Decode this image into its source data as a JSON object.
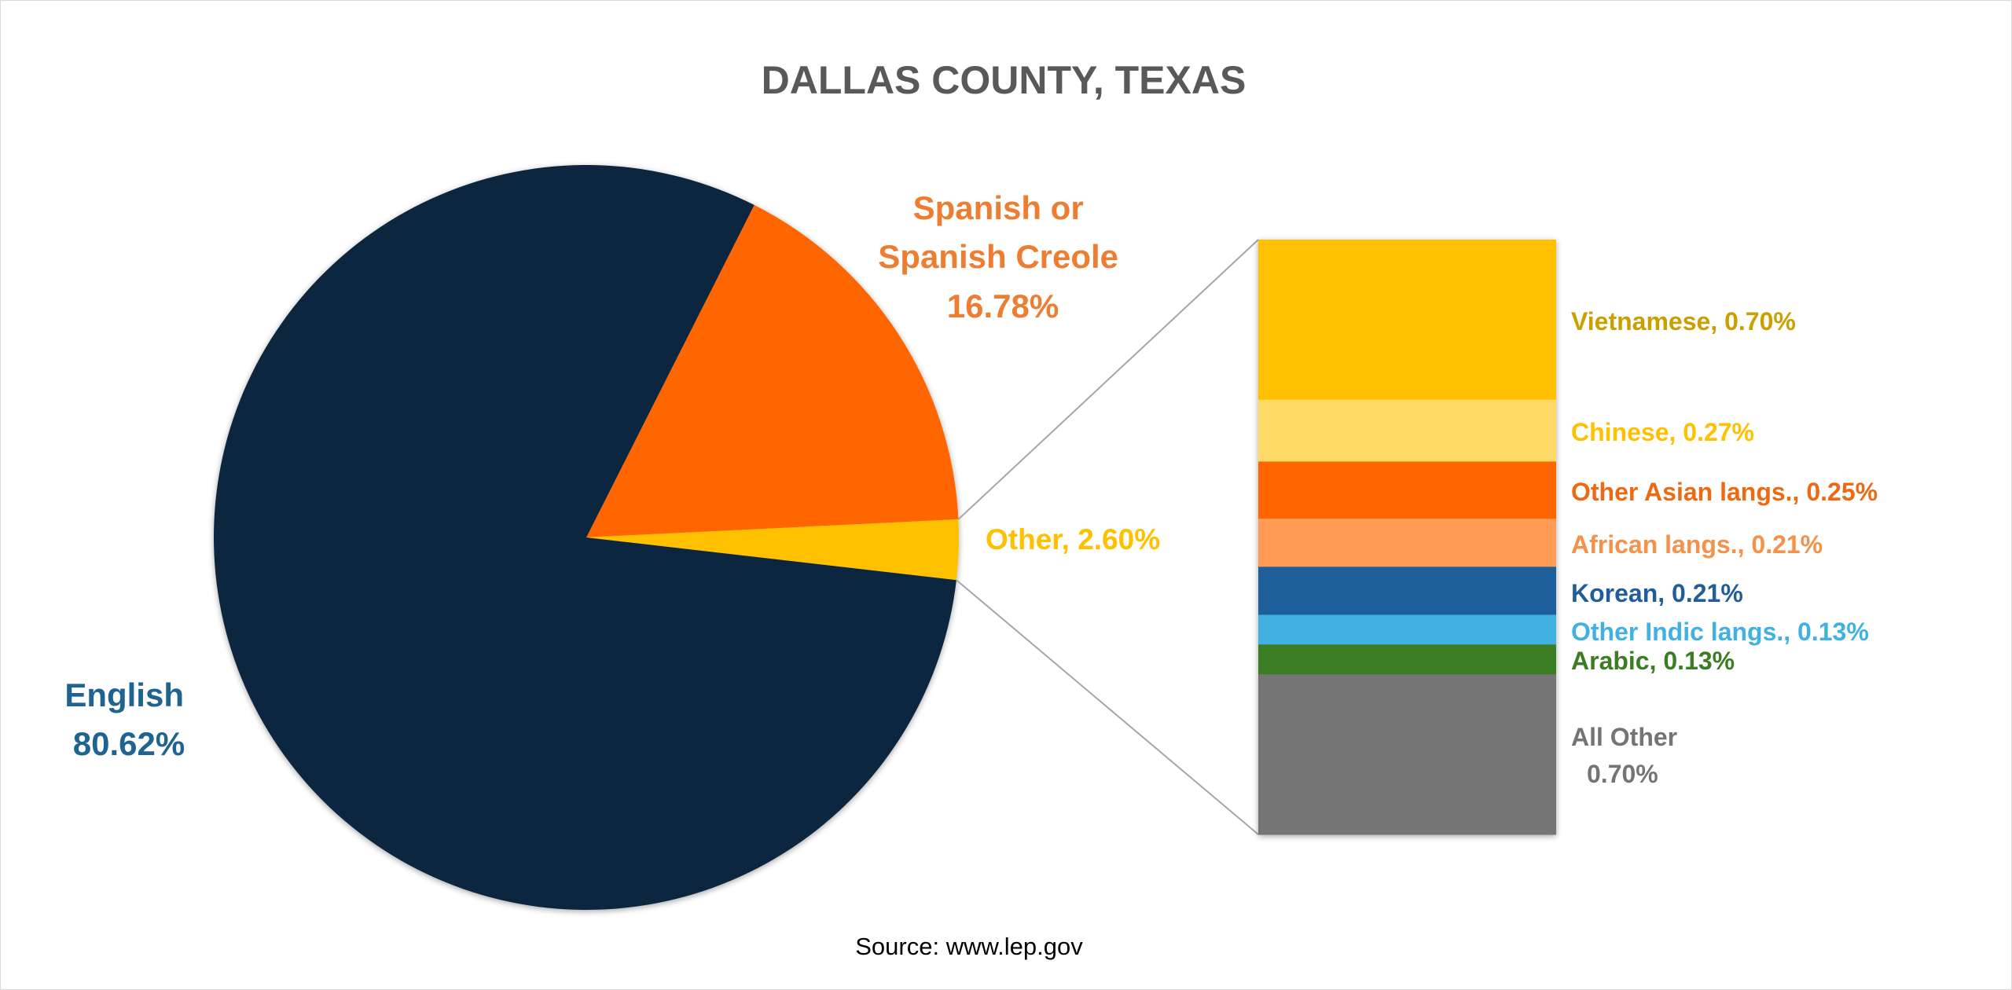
{
  "chart_data": [
    {
      "type": "pie",
      "title": "DALLAS COUNTY, TEXAS",
      "source": "Source: www.lep.gov",
      "slices": [
        {
          "key": "spanish",
          "label_lines": [
            "Spanish or",
            "Spanish Creole"
          ],
          "value_label": "16.78%",
          "value": 16.78,
          "color": "#FF6600",
          "label_color": "#ED7D31"
        },
        {
          "key": "other",
          "label": "Other, 2.60%",
          "value": 2.6,
          "color": "#FFC000",
          "label_color": "#FFC000"
        },
        {
          "key": "english",
          "label": "English",
          "value_label": "80.62%",
          "value": 80.62,
          "color": "#0F2640",
          "label_color": "#1F6391"
        }
      ]
    },
    {
      "type": "bar",
      "stacked": true,
      "breakdown_of": "Other, 2.60%",
      "segments": [
        {
          "label": "Vietnamese, 0.70%",
          "value": 0.7,
          "color": "#FFC000",
          "label_color": "#C9A000"
        },
        {
          "label": "Chinese, 0.27%",
          "value": 0.27,
          "color": "#FFD966",
          "label_color": "#FFC000"
        },
        {
          "label": "Other Asian langs., 0.25%",
          "value": 0.25,
          "color": "#FF6600",
          "label_color": "#ED6A14"
        },
        {
          "label": "African langs., 0.21%",
          "value": 0.21,
          "color": "#FF9B55",
          "label_color": "#F4914A"
        },
        {
          "label": "Korean, 0.21%",
          "value": 0.21,
          "color": "#1F5E9B",
          "label_color": "#1F5E9B"
        },
        {
          "label": "Other Indic langs., 0.13%",
          "value": 0.13,
          "color": "#41B1E1",
          "label_color": "#41B1E1"
        },
        {
          "label": "Arabic, 0.13%",
          "value": 0.13,
          "color": "#3B7D23",
          "label_color": "#3B7D23"
        },
        {
          "label_lines": [
            "All Other",
            "0.70%"
          ],
          "value": 0.7,
          "color": "#747474",
          "label_color": "#747474"
        }
      ]
    }
  ]
}
